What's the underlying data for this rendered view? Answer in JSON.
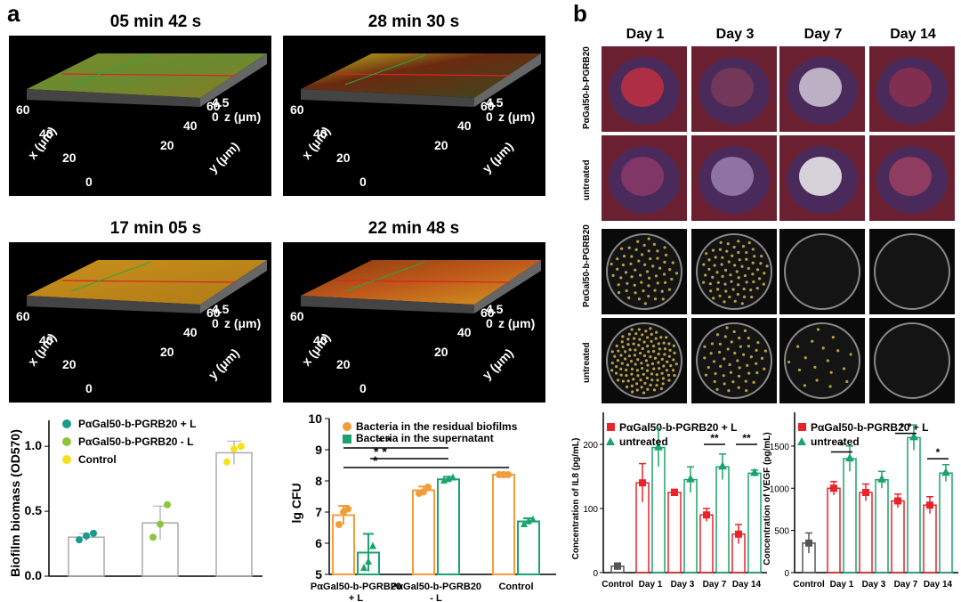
{
  "panel_labels": {
    "a": "a",
    "b": "b"
  },
  "timestamps": [
    "05 min 42 s",
    "28 min 30 s",
    "17 min 05 s",
    "22 min 48 s"
  ],
  "axis3d": {
    "x_label": "x (μm)",
    "y_label": "y (μm)",
    "z_label": "z (μm)",
    "x_ticks": [
      "60",
      "40",
      "20",
      "0"
    ],
    "y_ticks": [
      "20",
      "40",
      "60"
    ],
    "z_ticks": [
      "4.5",
      "0"
    ]
  },
  "days": [
    "Day 1",
    "Day 3",
    "Day 7",
    "Day 14"
  ],
  "row_labels": [
    "PαGal50-b-PGRB20",
    "untreated",
    "PαGal50-b-PGRB20",
    "untreated"
  ],
  "colors": {
    "teal": "#1a9a8e",
    "lime": "#8cc63e",
    "yellow": "#f5e11a",
    "orange": "#f39c3a",
    "green": "#1aa36d",
    "red": "#e8232a",
    "dark": "#555555"
  },
  "chart_data": [
    {
      "type": "bar",
      "categories": [
        "PαGal50-b-PGRB20 + L",
        "PαGal50-b-PGRB20 - L",
        "Control"
      ],
      "values": [
        0.3,
        0.41,
        0.95
      ],
      "errors": [
        0.03,
        0.13,
        0.09
      ],
      "points": [
        [
          0.28,
          0.31,
          0.33
        ],
        [
          0.3,
          0.4,
          0.55
        ],
        [
          0.88,
          0.98,
          1.0
        ]
      ],
      "ylabel": "Biofilm biomass (OD570)",
      "ylim": [
        0,
        1.2
      ],
      "yticks": [
        "0.0",
        "0.5",
        "1.0"
      ],
      "legend": [
        "PαGal50-b-PGRB20 + L",
        "PαGal50-b-PGRB20 - L",
        "Control"
      ]
    },
    {
      "type": "bar",
      "categories": [
        "PαGal50-b-PGRB20 + L",
        "PαGal50-b-PGRB20 - L",
        "Control"
      ],
      "series": [
        {
          "name": "Bacteria in the residual biofilms",
          "values": [
            6.9,
            7.7,
            8.2
          ],
          "errors": [
            0.3,
            0.12,
            0.02
          ],
          "points": [
            [
              6.6,
              7.0,
              7.1
            ],
            [
              7.6,
              7.65,
              7.8
            ],
            [
              8.2,
              8.2,
              8.2
            ]
          ]
        },
        {
          "name": "Bacteria in the supernatant",
          "values": [
            5.7,
            8.05,
            6.7
          ],
          "errors": [
            0.6,
            0.08,
            0.1
          ],
          "points": [
            [
              5.2,
              5.4,
              5.9
            ],
            [
              8.0,
              8.05,
              8.1
            ],
            [
              6.6,
              6.7,
              6.75
            ]
          ]
        }
      ],
      "ylabel": "lg CFU",
      "ylim": [
        5,
        10
      ],
      "yticks": [
        "5",
        "6",
        "7",
        "8",
        "9",
        "10"
      ],
      "significance": [
        "*",
        "* *",
        "* *"
      ],
      "xtick_labels": [
        [
          "PαGal50-b-PGRB20",
          "+ L"
        ],
        [
          "PαGal50-b-PGRB20",
          "- L"
        ],
        [
          "Control"
        ]
      ]
    },
    {
      "type": "bar",
      "categories": [
        "Control",
        "Day 1",
        "Day 3",
        "Day 7",
        "Day 14"
      ],
      "series": [
        {
          "name": "PαGal50-b-PGRB20 + L",
          "values": [
            10,
            140,
            125,
            90,
            60
          ],
          "errors": [
            5,
            30,
            5,
            10,
            15
          ]
        },
        {
          "name": "untreated",
          "values": [
            null,
            195,
            145,
            165,
            155
          ],
          "errors": [
            null,
            30,
            20,
            20,
            5
          ]
        }
      ],
      "ylabel": "Concentration of IL8 (pg/mL)",
      "ylim": [
        0,
        250
      ],
      "yticks": [
        "0",
        "100",
        "200"
      ],
      "significance": [
        "**",
        "**"
      ]
    },
    {
      "type": "bar",
      "categories": [
        "Control",
        "Day 1",
        "Day 3",
        "Day 7",
        "Day 14"
      ],
      "series": [
        {
          "name": "PαGal50-b-PGRB20 + L",
          "values": [
            350,
            1000,
            950,
            850,
            800
          ],
          "errors": [
            120,
            80,
            100,
            80,
            100
          ]
        },
        {
          "name": "untreated",
          "values": [
            null,
            1350,
            1100,
            1600,
            1180
          ],
          "errors": [
            null,
            150,
            100,
            150,
            100
          ]
        }
      ],
      "ylabel": "Concentration of VEGF (pg/mL)",
      "ylim": [
        0,
        1900
      ],
      "yticks": [
        "0",
        "500",
        "1000",
        "1500"
      ],
      "significance": [
        "*",
        "* *",
        "*"
      ]
    }
  ]
}
